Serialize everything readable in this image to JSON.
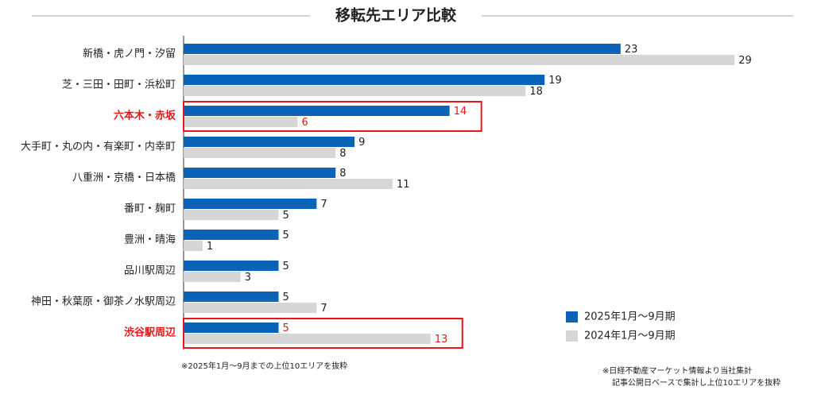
{
  "chart_data": {
    "type": "bar",
    "orientation": "horizontal",
    "title": "移転先エリア比較",
    "categories": [
      "新橋・虎ノ門・汐留",
      "芝・三田・田町・浜松町",
      "六本木・赤坂",
      "大手町・丸の内・有楽町・内幸町",
      "八重洲・京橋・日本橋",
      "番町・麹町",
      "豊洲・晴海",
      "品川駅周辺",
      "神田・秋葉原・御茶ノ水駅周辺",
      "渋谷駅周辺"
    ],
    "series": [
      {
        "name": "2025年1月～9月期",
        "color": "#0b63b8",
        "values": [
          23,
          19,
          14,
          9,
          8,
          7,
          5,
          5,
          5,
          5
        ]
      },
      {
        "name": "2024年1月～9月期",
        "color": "#d6d6d6",
        "values": [
          29,
          18,
          6,
          8,
          11,
          5,
          1,
          3,
          7,
          13
        ]
      }
    ],
    "xlim": [
      0,
      32
    ],
    "highlight": [
      2,
      9
    ],
    "highlight_color": "#e8161b",
    "footnote": "※2025年1月～9月までの上位10エリアを抜粋",
    "source": [
      "※日経不動産マーケット情報より当社集計",
      "記事公開日ベースで集計し上位10エリアを抜粋"
    ]
  }
}
